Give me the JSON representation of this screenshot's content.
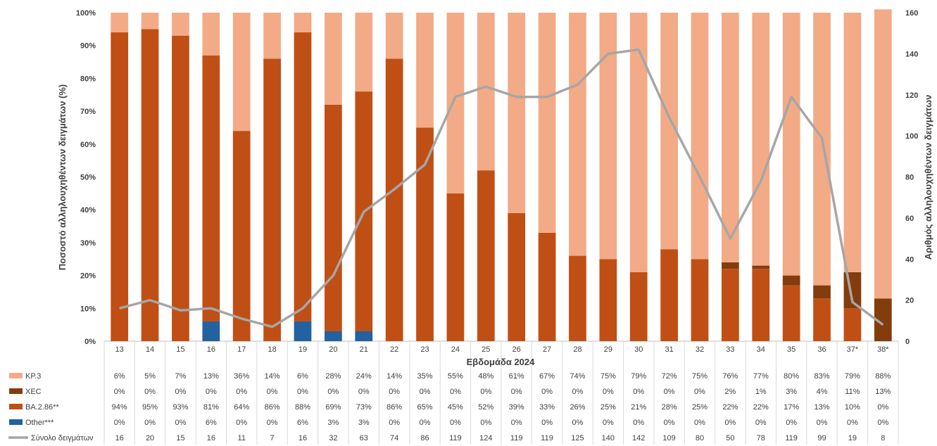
{
  "chart_data": {
    "type": "bar",
    "stacked": true,
    "xlabel": "Εβδομάδα 2024",
    "ylabel": "Ποσοστό αλληλουχηθέντων δειγμάτων (%)",
    "y2label": "Αριθμός αλληλουχηθέντων δειγμάτων",
    "ylim": [
      0,
      100
    ],
    "y2lim": [
      0,
      160
    ],
    "yticks": [
      "0%",
      "10%",
      "20%",
      "30%",
      "40%",
      "50%",
      "60%",
      "70%",
      "80%",
      "90%",
      "100%"
    ],
    "y2ticks": [
      "0",
      "20",
      "40",
      "60",
      "80",
      "100",
      "120",
      "140",
      "160"
    ],
    "categories": [
      "13",
      "14",
      "15",
      "16",
      "17",
      "18",
      "19",
      "20",
      "21",
      "22",
      "23",
      "24",
      "25",
      "26",
      "27",
      "28",
      "29",
      "30",
      "31",
      "32",
      "33",
      "34",
      "35",
      "36",
      "37*",
      "38*"
    ],
    "series": [
      {
        "name": "KP.3",
        "color": "#F2AB86",
        "values": [
          6,
          5,
          7,
          13,
          36,
          14,
          6,
          28,
          24,
          14,
          35,
          55,
          48,
          61,
          67,
          74,
          75,
          79,
          72,
          75,
          76,
          77,
          80,
          83,
          79,
          88
        ],
        "labels": [
          "6%",
          "5%",
          "7%",
          "13%",
          "36%",
          "14%",
          "6%",
          "28%",
          "24%",
          "14%",
          "35%",
          "55%",
          "48%",
          "61%",
          "67%",
          "74%",
          "75%",
          "79%",
          "72%",
          "75%",
          "76%",
          "77%",
          "80%",
          "83%",
          "79%",
          "88%"
        ]
      },
      {
        "name": "XEC",
        "color": "#843C0C",
        "values": [
          0,
          0,
          0,
          0,
          0,
          0,
          0,
          0,
          0,
          0,
          0,
          0,
          0,
          0,
          0,
          0,
          0,
          0,
          0,
          0,
          2,
          1,
          3,
          4,
          11,
          13
        ],
        "labels": [
          "0%",
          "0%",
          "0%",
          "0%",
          "0%",
          "0%",
          "0%",
          "0%",
          "0%",
          "0%",
          "0%",
          "0%",
          "0%",
          "0%",
          "0%",
          "0%",
          "0%",
          "0%",
          "0%",
          "0%",
          "2%",
          "1%",
          "3%",
          "4%",
          "11%",
          "13%"
        ]
      },
      {
        "name": "BA.2.86**",
        "color": "#C04F15",
        "values": [
          94,
          95,
          93,
          81,
          64,
          86,
          88,
          69,
          73,
          86,
          65,
          45,
          52,
          39,
          33,
          26,
          25,
          21,
          28,
          25,
          22,
          22,
          17,
          13,
          10,
          0
        ],
        "labels": [
          "94%",
          "95%",
          "93%",
          "81%",
          "64%",
          "86%",
          "88%",
          "69%",
          "73%",
          "86%",
          "65%",
          "45%",
          "52%",
          "39%",
          "33%",
          "26%",
          "25%",
          "21%",
          "28%",
          "25%",
          "22%",
          "22%",
          "17%",
          "13%",
          "10%",
          "0%"
        ]
      },
      {
        "name": "Other***",
        "color": "#2361A0",
        "values": [
          0,
          0,
          0,
          6,
          0,
          0,
          6,
          3,
          3,
          0,
          0,
          0,
          0,
          0,
          0,
          0,
          0,
          0,
          0,
          0,
          0,
          0,
          0,
          0,
          0,
          0
        ],
        "labels": [
          "0%",
          "0%",
          "0%",
          "6%",
          "0%",
          "0%",
          "6%",
          "3%",
          "3%",
          "0%",
          "0%",
          "0%",
          "0%",
          "0%",
          "0%",
          "0%",
          "0%",
          "0%",
          "0%",
          "0%",
          "0%",
          "0%",
          "0%",
          "0%",
          "0%",
          "0%"
        ]
      }
    ],
    "line": {
      "name": "Σύνολο δειγμάτων",
      "color": "#A6A6A6",
      "axis": "right",
      "values": [
        16,
        20,
        15,
        16,
        11,
        7,
        16,
        32,
        63,
        74,
        86,
        119,
        124,
        119,
        119,
        125,
        140,
        142,
        109,
        80,
        50,
        78,
        119,
        99,
        19,
        8
      ],
      "labels": [
        "16",
        "20",
        "15",
        "16",
        "11",
        "7",
        "16",
        "32",
        "63",
        "74",
        "86",
        "119",
        "124",
        "119",
        "119",
        "125",
        "140",
        "142",
        "109",
        "80",
        "50",
        "78",
        "119",
        "99",
        "19",
        "8"
      ]
    },
    "data_table": true
  }
}
